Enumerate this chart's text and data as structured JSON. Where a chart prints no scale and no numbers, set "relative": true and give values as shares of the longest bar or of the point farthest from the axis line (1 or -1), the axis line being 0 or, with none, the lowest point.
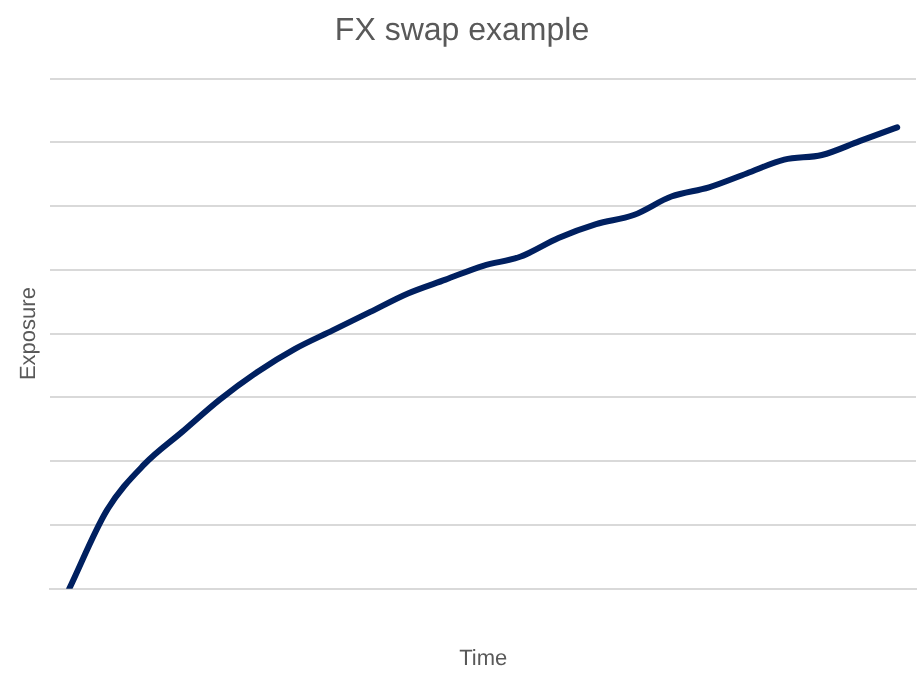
{
  "chart_data": {
    "type": "line",
    "title": "FX swap example",
    "xlabel": "Time",
    "ylabel": "Exposure",
    "relative": true,
    "grid": "y",
    "legend": false,
    "marker": "none",
    "line_style": "solid",
    "categories": [
      null,
      null,
      null,
      null,
      null,
      null,
      null,
      null,
      null,
      null,
      null,
      null,
      null,
      null,
      null,
      null,
      null,
      null,
      null,
      null,
      null,
      null,
      null
    ],
    "series": [
      {
        "color": "#002060",
        "values": [
          0,
          0.17,
          0.27,
          0.34,
          0.41,
          0.47,
          0.52,
          0.56,
          0.6,
          0.64,
          0.67,
          0.7,
          0.72,
          0.76,
          0.79,
          0.81,
          0.85,
          0.87,
          0.9,
          0.93,
          0.94,
          0.97,
          1
        ]
      }
    ]
  }
}
